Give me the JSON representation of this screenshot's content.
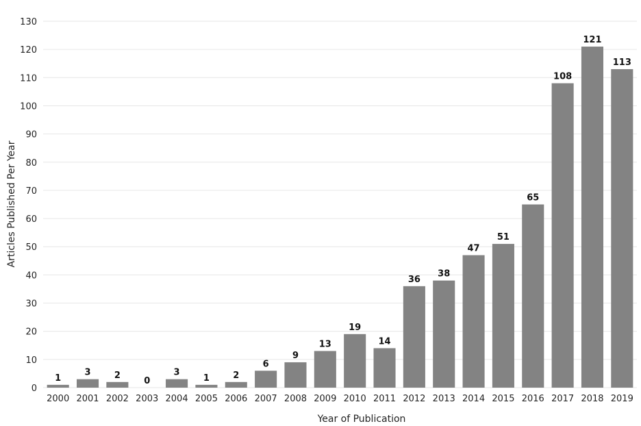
{
  "chart_data": {
    "type": "bar",
    "title": "",
    "xlabel": "Year of Publication",
    "ylabel": "Articles Published Per Year",
    "categories": [
      "2000",
      "2001",
      "2002",
      "2003",
      "2004",
      "2005",
      "2006",
      "2007",
      "2008",
      "2009",
      "2010",
      "2011",
      "2012",
      "2013",
      "2014",
      "2015",
      "2016",
      "2017",
      "2018",
      "2019"
    ],
    "values": [
      1,
      3,
      2,
      0,
      3,
      1,
      2,
      6,
      9,
      13,
      19,
      14,
      36,
      38,
      47,
      51,
      65,
      108,
      121,
      113
    ],
    "ylim": [
      0,
      130
    ],
    "yticks": [
      0,
      10,
      20,
      30,
      40,
      50,
      60,
      70,
      80,
      90,
      100,
      110,
      120,
      130
    ],
    "grid": true,
    "data_labels": true,
    "bar_color": "#838383",
    "legend": "none"
  }
}
